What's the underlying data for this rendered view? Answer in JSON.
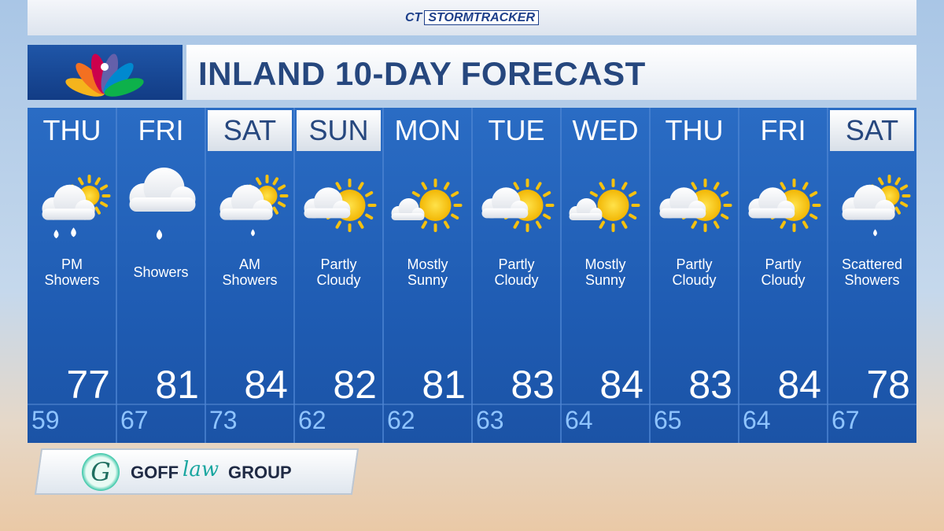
{
  "brand": {
    "station": "CT",
    "product": "STORMTRACKER"
  },
  "title": "INLAND 10-DAY FORECAST",
  "days": [
    {
      "day": "THU",
      "condition": "PM Showers",
      "high": 77,
      "low": 59,
      "highlight": false,
      "icon": "sun-cloud-rain"
    },
    {
      "day": "FRI",
      "condition": "Showers",
      "high": 81,
      "low": 67,
      "highlight": false,
      "icon": "cloud-rain"
    },
    {
      "day": "SAT",
      "condition": "AM Showers",
      "high": 84,
      "low": 73,
      "highlight": true,
      "icon": "sun-cloud-drizzle"
    },
    {
      "day": "SUN",
      "condition": "Partly Cloudy",
      "high": 82,
      "low": 62,
      "highlight": true,
      "icon": "sun-cloud"
    },
    {
      "day": "MON",
      "condition": "Mostly Sunny",
      "high": 81,
      "low": 62,
      "highlight": false,
      "icon": "sun-small-cloud"
    },
    {
      "day": "TUE",
      "condition": "Partly Cloudy",
      "high": 83,
      "low": 63,
      "highlight": false,
      "icon": "sun-cloud"
    },
    {
      "day": "WED",
      "condition": "Mostly Sunny",
      "high": 84,
      "low": 64,
      "highlight": false,
      "icon": "sun-small-cloud"
    },
    {
      "day": "THU",
      "condition": "Partly Cloudy",
      "high": 83,
      "low": 65,
      "highlight": false,
      "icon": "sun-cloud"
    },
    {
      "day": "FRI",
      "condition": "Partly Cloudy",
      "high": 84,
      "low": 64,
      "highlight": false,
      "icon": "sun-cloud"
    },
    {
      "day": "SAT",
      "condition": "Scattered Showers",
      "high": 78,
      "low": 67,
      "highlight": true,
      "icon": "sun-cloud-drizzle"
    }
  ],
  "sponsor": {
    "logo": "G",
    "name1": "GOFF",
    "name2": "law",
    "name3": "GROUP"
  }
}
